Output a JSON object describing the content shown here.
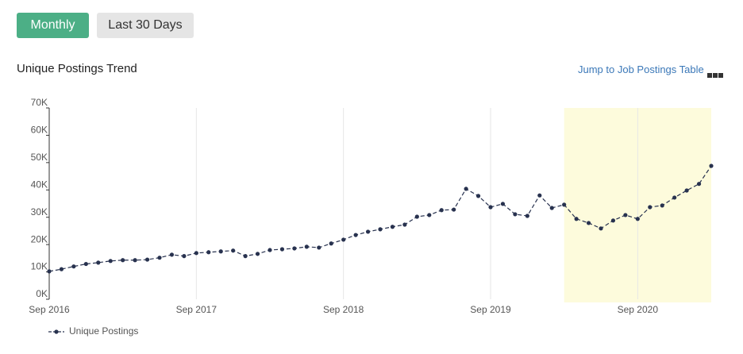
{
  "buttons": [
    "Monthly",
    "Last 30 Days"
  ],
  "link": "Jump to Job Postings Table",
  "chart_data": {
    "type": "line",
    "title": "Unique Postings Trend",
    "x": [
      "2016-09",
      "2016-10",
      "2016-11",
      "2016-12",
      "2017-01",
      "2017-02",
      "2017-03",
      "2017-04",
      "2017-05",
      "2017-06",
      "2017-07",
      "2017-08",
      "2017-09",
      "2017-10",
      "2017-11",
      "2017-12",
      "2018-01",
      "2018-02",
      "2018-03",
      "2018-04",
      "2018-05",
      "2018-06",
      "2018-07",
      "2018-08",
      "2018-09",
      "2018-10",
      "2018-11",
      "2018-12",
      "2019-01",
      "2019-02",
      "2019-03",
      "2019-04",
      "2019-05",
      "2019-06",
      "2019-07",
      "2019-08",
      "2019-09",
      "2019-10",
      "2019-11",
      "2019-12",
      "2020-01",
      "2020-02",
      "2020-03",
      "2020-04",
      "2020-05",
      "2020-06",
      "2020-07",
      "2020-08",
      "2020-09",
      "2020-10",
      "2020-11",
      "2020-12",
      "2021-01",
      "2021-02",
      "2021-03"
    ],
    "series": [
      {
        "name": "Unique Postings",
        "color": "#28324f",
        "values": [
          10200,
          11000,
          12000,
          12900,
          13400,
          14000,
          14300,
          14300,
          14500,
          15200,
          16300,
          15800,
          16900,
          17200,
          17500,
          17800,
          15800,
          16600,
          18000,
          18300,
          18600,
          19200,
          18900,
          20400,
          21800,
          23500,
          24700,
          25600,
          26500,
          27300,
          30200,
          30800,
          32600,
          32800,
          40400,
          37800,
          33700,
          34900,
          31100,
          30500,
          38000,
          33400,
          34600,
          29400,
          27900,
          25900,
          28800,
          30800,
          29400,
          33700,
          34300,
          37200,
          39800,
          42200,
          48800
        ]
      }
    ],
    "xlim": [
      "2016-09",
      "2021-03"
    ],
    "xticks": [
      {
        "value": "2016-09",
        "label": "Sep 2016"
      },
      {
        "value": "2017-09",
        "label": "Sep 2017"
      },
      {
        "value": "2018-09",
        "label": "Sep 2018"
      },
      {
        "value": "2019-09",
        "label": "Sep 2019"
      },
      {
        "value": "2020-09",
        "label": "Sep 2020"
      }
    ],
    "ylim": [
      0,
      70000
    ],
    "yticks": [
      {
        "value": 0,
        "label": "0K"
      },
      {
        "value": 10000,
        "label": "10K"
      },
      {
        "value": 20000,
        "label": "20K"
      },
      {
        "value": 30000,
        "label": "30K"
      },
      {
        "value": 40000,
        "label": "40K"
      },
      {
        "value": 50000,
        "label": "50K"
      },
      {
        "value": 60000,
        "label": "60K"
      },
      {
        "value": 70000,
        "label": "70K"
      }
    ],
    "highlight": [
      "2020-03",
      "2021-03"
    ],
    "highlight_color": "#fdfbdc",
    "grid": true
  }
}
